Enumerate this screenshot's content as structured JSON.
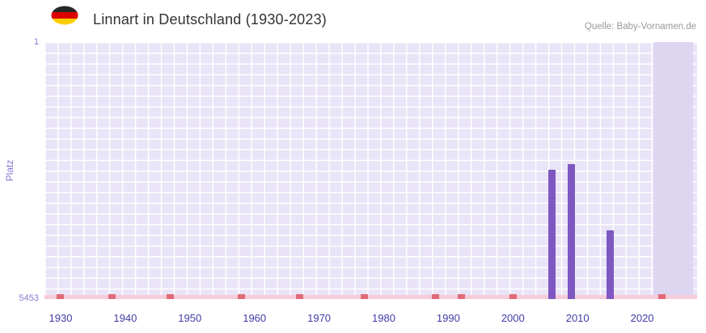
{
  "header": {
    "title": "Linnart in Deutschland (1930-2023)",
    "source": "Quelle: Baby-Vornamen.de",
    "flag_icon": {
      "name": "german-flag-icon",
      "stripe_colors": [
        "#262626",
        "#dd0000",
        "#ffce00"
      ]
    }
  },
  "chart_data": {
    "type": "bar",
    "title": "Linnart in Deutschland (1930-2023)",
    "ylabel": "Platz",
    "xlabel": "",
    "y_axis": {
      "top_label": "1",
      "bottom_label": "5453",
      "min": 1,
      "max": 5453,
      "inverted": true
    },
    "x_axis": {
      "ticks": [
        "1930",
        "1940",
        "1950",
        "1960",
        "1970",
        "1980",
        "1990",
        "2000",
        "2010",
        "2020"
      ],
      "data_start": 1930,
      "data_end": 2023,
      "domain_start": 1927.5,
      "domain_span": 101
    },
    "bars": [
      {
        "year": 2006,
        "rank": 2710
      },
      {
        "year": 2009,
        "rank": 2590
      },
      {
        "year": 2015,
        "rank": 4000
      }
    ],
    "unranked_marker_years": [
      1930,
      1938,
      1947,
      1958,
      1967,
      1977,
      1988,
      1992,
      2000,
      2023
    ],
    "highlight_band": {
      "left_pct": 93.3,
      "width_pct": 6.1
    },
    "grid": true,
    "legend": false,
    "colors": {
      "bar": "#7e57c2",
      "plot_bg": "#e9e4f7",
      "grid_line": "#ffffff",
      "baseline_strip": "#f6ccd8",
      "unranked_marker": "#e06a77",
      "recent_band": "#ded6f1",
      "y_text": "#8479d2",
      "x_text": "#3f3ca6",
      "title_text": "#333333",
      "source_text": "#999999"
    }
  }
}
